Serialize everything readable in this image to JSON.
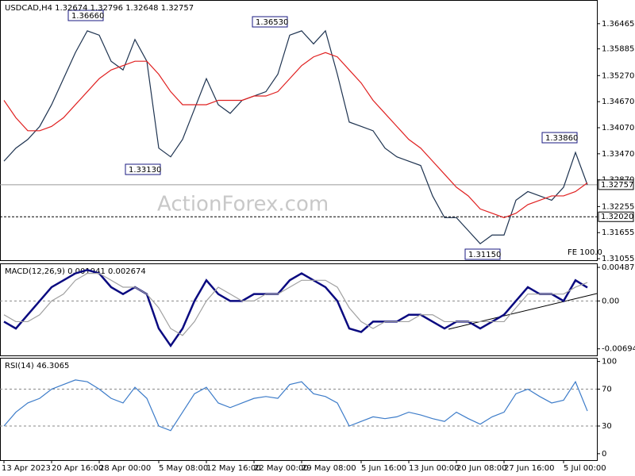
{
  "chart_data": [
    {
      "type": "line",
      "title": "USDCAD,H4 1.32674 1.32796 1.32648 1.32757",
      "watermark": "ActionForex.com",
      "categories": [
        "13 Apr 2023",
        null,
        null,
        null,
        "20 Apr 16:00",
        null,
        null,
        null,
        "28 Apr 00:00",
        null,
        null,
        null,
        null,
        "5 May 08:00",
        null,
        null,
        null,
        "12 May 16:00",
        null,
        null,
        null,
        "22 May 00:00",
        null,
        null,
        null,
        "29 May 08:00",
        null,
        null,
        null,
        null,
        "5 Jun 16:00",
        null,
        null,
        null,
        "13 Jun 00:00",
        null,
        null,
        null,
        "20 Jun 08:00",
        null,
        null,
        null,
        "27 Jun 16:00",
        null,
        null,
        null,
        null,
        "5 Jul 00:00",
        null,
        null
      ],
      "series": [
        {
          "color": "#1e3350",
          "values": [
            1.333,
            1.336,
            1.338,
            1.341,
            1.346,
            1.352,
            1.358,
            1.363,
            1.362,
            1.356,
            1.354,
            1.361,
            1.356,
            1.336,
            1.334,
            1.338,
            1.345,
            1.352,
            1.346,
            1.344,
            1.347,
            1.348,
            1.349,
            1.353,
            1.362,
            1.363,
            1.36,
            1.363,
            1.353,
            1.342,
            1.341,
            1.34,
            1.336,
            1.334,
            1.333,
            1.332,
            1.325,
            1.32,
            1.32,
            1.317,
            1.314,
            1.316,
            1.316,
            1.324,
            1.326,
            1.325,
            1.324,
            1.327,
            1.335,
            1.32757
          ]
        },
        {
          "color": "#e02020",
          "values": [
            1.347,
            1.343,
            1.34,
            1.34,
            1.341,
            1.343,
            1.346,
            1.349,
            1.352,
            1.354,
            1.355,
            1.356,
            1.356,
            1.353,
            1.349,
            1.346,
            1.346,
            1.346,
            1.347,
            1.347,
            1.347,
            1.348,
            1.348,
            1.349,
            1.352,
            1.355,
            1.357,
            1.358,
            1.357,
            1.354,
            1.351,
            1.347,
            1.344,
            1.341,
            1.338,
            1.336,
            1.333,
            1.33,
            1.327,
            1.325,
            1.322,
            1.321,
            1.32,
            1.321,
            1.323,
            1.324,
            1.325,
            1.325,
            1.326,
            1.328
          ]
        }
      ],
      "ylim": [
        1.3102,
        1.3701
      ],
      "yticks": [
        {
          "value": 1.36465,
          "label": "1.36465"
        },
        {
          "value": 1.35885,
          "label": "1.35885"
        },
        {
          "value": 1.3527,
          "label": "1.35270"
        },
        {
          "value": 1.3467,
          "label": "1.34670"
        },
        {
          "value": 1.3407,
          "label": "1.34070"
        },
        {
          "value": 1.3347,
          "label": "1.33470"
        },
        {
          "value": 1.3287,
          "label": "1.32870"
        },
        {
          "value": 1.32255,
          "label": "1.32255"
        },
        {
          "value": 1.31655,
          "label": "1.31655"
        },
        {
          "value": 1.31055,
          "label": "1.31055"
        }
      ],
      "price_lines": [
        {
          "value": 1.32757,
          "label": "1.32757",
          "style": "solid"
        },
        {
          "value": 1.3202,
          "label": "1.32020",
          "style": "dashed"
        }
      ],
      "annotations": [
        "1.36660",
        "1.36530",
        "1.33130",
        "1.33860",
        "1.31150",
        "FE 100.0"
      ]
    },
    {
      "type": "line",
      "title": "MACD(12,26,9) 0.001941 0.002674",
      "grid": "dashed",
      "series": [
        {
          "color": "#0a0a80",
          "values": [
            -0.003,
            -0.004,
            -0.002,
            0.0,
            0.002,
            0.003,
            0.004,
            0.0045,
            0.004,
            0.002,
            0.001,
            0.002,
            0.001,
            -0.004,
            -0.0065,
            -0.004,
            0.0,
            0.003,
            0.001,
            0.0,
            0.0,
            0.001,
            0.001,
            0.001,
            0.003,
            0.004,
            0.003,
            0.002,
            0.0,
            -0.004,
            -0.0045,
            -0.003,
            -0.003,
            -0.003,
            -0.002,
            -0.002,
            -0.003,
            -0.004,
            -0.003,
            -0.003,
            -0.004,
            -0.003,
            -0.002,
            0.0,
            0.002,
            0.001,
            0.001,
            0.0,
            0.003,
            0.001941
          ]
        },
        {
          "color": "#a0a0a0",
          "values": [
            -0.002,
            -0.003,
            -0.003,
            -0.002,
            0.0,
            0.001,
            0.003,
            0.004,
            0.004,
            0.003,
            0.002,
            0.002,
            0.001,
            -0.001,
            -0.004,
            -0.005,
            -0.003,
            0.0,
            0.002,
            0.001,
            0.0,
            0.0,
            0.001,
            0.001,
            0.002,
            0.003,
            0.003,
            0.003,
            0.002,
            -0.001,
            -0.003,
            -0.004,
            -0.003,
            -0.003,
            -0.003,
            -0.002,
            -0.002,
            -0.003,
            -0.003,
            -0.003,
            -0.003,
            -0.003,
            -0.003,
            -0.001,
            0.001,
            0.001,
            0.001,
            0.001,
            0.002,
            0.002674
          ]
        }
      ],
      "ylim": [
        -0.0079,
        0.00545
      ],
      "yticks": [
        0.00487,
        {
          "value": 0,
          "label": "0.00"
        },
        -0.006945
      ]
    },
    {
      "type": "line",
      "title": "RSI(14) 46.3065",
      "grid": "dashed",
      "series": [
        {
          "color": "#3d7cc9",
          "values": [
            30,
            45,
            55,
            60,
            70,
            75,
            80,
            78,
            70,
            60,
            55,
            72,
            60,
            30,
            25,
            45,
            65,
            72,
            55,
            50,
            55,
            60,
            62,
            60,
            75,
            78,
            65,
            62,
            55,
            30,
            35,
            40,
            38,
            40,
            45,
            42,
            38,
            35,
            45,
            38,
            32,
            40,
            45,
            65,
            70,
            62,
            55,
            58,
            78,
            46.3065
          ]
        }
      ],
      "ylim": [
        -7,
        104
      ],
      "yticks": [
        100,
        70,
        30,
        0
      ]
    }
  ]
}
